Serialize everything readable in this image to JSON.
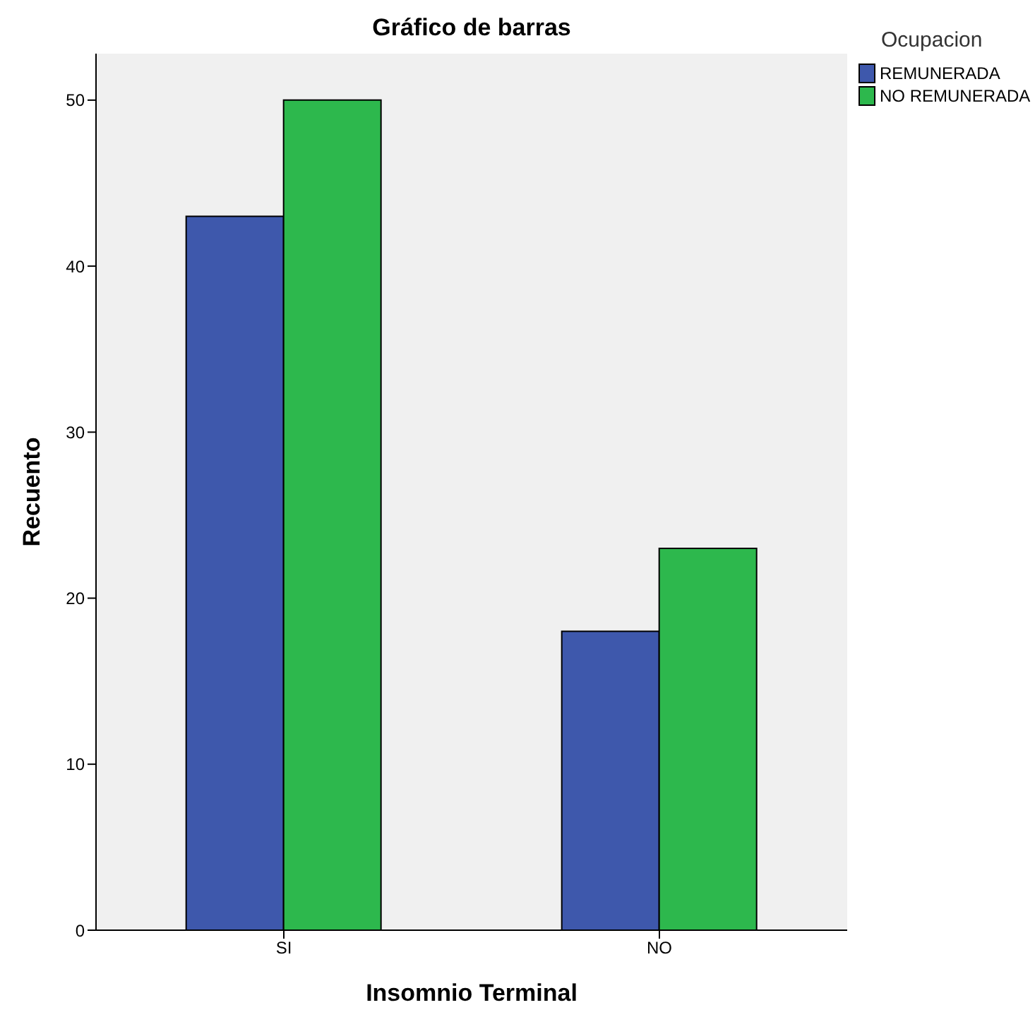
{
  "chart_data": {
    "type": "bar",
    "title": "Gráfico de barras",
    "xlabel": "Insomnio Terminal",
    "ylabel": "Recuento",
    "legend_title": "Ocupacion",
    "categories": [
      "SI",
      "NO"
    ],
    "series": [
      {
        "name": "REMUNERADA",
        "color": "#3e58ac",
        "values": [
          43,
          18
        ]
      },
      {
        "name": "NO REMUNERADA",
        "color": "#2db84d",
        "values": [
          50,
          23
        ]
      }
    ],
    "ylim": [
      0,
      52.8
    ],
    "yticks": [
      0,
      10,
      20,
      30,
      40,
      50
    ],
    "legend": "top right"
  }
}
